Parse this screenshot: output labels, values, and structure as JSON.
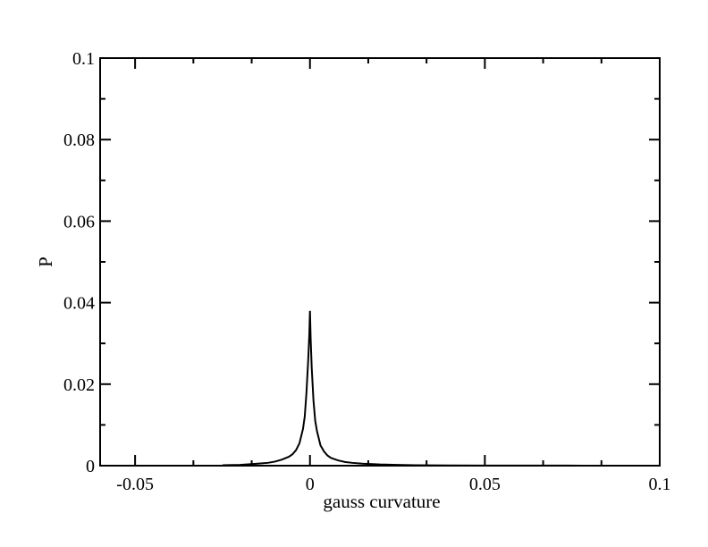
{
  "chart_data": {
    "type": "line",
    "title": "",
    "xlabel": "gauss curvature",
    "ylabel": "P",
    "xlim": [
      -0.06,
      0.1
    ],
    "ylim": [
      0,
      0.1
    ],
    "xticks": [
      -0.05,
      0,
      0.05,
      0.1
    ],
    "xtick_labels": [
      "-0.05",
      "0",
      "0.05",
      "0.1"
    ],
    "yticks": [
      0,
      0.02,
      0.04,
      0.06,
      0.08,
      0.1
    ],
    "ytick_labels": [
      "0",
      "0.02",
      "0.04",
      "0.06",
      "0.08",
      "0.1"
    ],
    "x_minor_step": 0.01666,
    "y_minor_step": 0.01,
    "grid": false,
    "legend": "none",
    "line_color": "#000000",
    "series": [
      {
        "x": [
          -0.025,
          -0.02,
          -0.015,
          -0.012,
          -0.01,
          -0.008,
          -0.006,
          -0.005,
          -0.004,
          -0.003,
          -0.002,
          -0.0015,
          -0.001,
          -0.0005,
          -0.0002,
          0,
          0.0002,
          0.0005,
          0.001,
          0.0015,
          0.002,
          0.003,
          0.004,
          0.005,
          0.006,
          0.008,
          0.01,
          0.012,
          0.015,
          0.02,
          0.025,
          0.03,
          0.04,
          0.05,
          0.06,
          0.07,
          0.078
        ],
        "y": [
          0.0001,
          0.0002,
          0.0005,
          0.0007,
          0.001,
          0.0015,
          0.0022,
          0.0028,
          0.0038,
          0.0055,
          0.009,
          0.012,
          0.018,
          0.026,
          0.032,
          0.038,
          0.031,
          0.024,
          0.016,
          0.011,
          0.0085,
          0.005,
          0.0035,
          0.0025,
          0.0019,
          0.0013,
          0.0009,
          0.0007,
          0.0005,
          0.0003,
          0.0002,
          0.0001,
          6e-05,
          4e-05,
          3e-05,
          2e-05,
          1e-05
        ]
      }
    ]
  }
}
